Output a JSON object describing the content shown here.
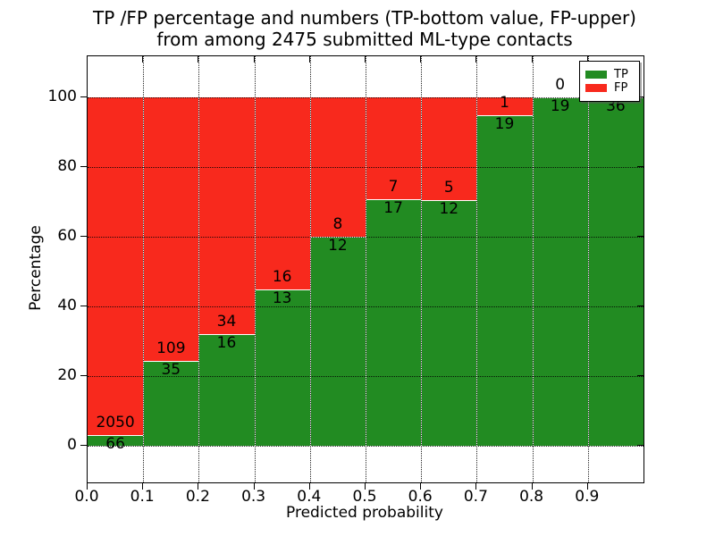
{
  "title": {
    "line1": "TP /FP percentage and numbers (TP-bottom value, FP-upper)",
    "line2": "from among 2475 submitted ML-type contacts"
  },
  "legend": {
    "items": [
      {
        "label": "TP",
        "color": "#228b22"
      },
      {
        "label": "FP",
        "color": "#f8291d"
      }
    ],
    "position": "upper right"
  },
  "chart_data": {
    "type": "bar",
    "subtype": "stacked_percentage",
    "title": "TP /FP percentage and numbers (TP-bottom value, FP-upper) from among 2475 submitted ML-type contacts",
    "xlabel": "Predicted probability",
    "ylabel": "Percentage",
    "total_contacts": 2475,
    "bin_width": 0.1,
    "bin_starts": [
      0.0,
      0.1,
      0.2,
      0.3,
      0.4,
      0.5,
      0.6,
      0.7,
      0.8,
      0.9
    ],
    "xticks": [
      "0.0",
      "0.1",
      "0.2",
      "0.3",
      "0.4",
      "0.5",
      "0.6",
      "0.7",
      "0.8",
      "0.9"
    ],
    "yticks": [
      0,
      20,
      40,
      60,
      80,
      100
    ],
    "ylim": [
      -10.5,
      111.8
    ],
    "xlim": [
      0.0,
      1.0
    ],
    "grid": true,
    "grid_style": "dotted",
    "series": [
      {
        "name": "TP",
        "position": "bottom",
        "color": "#228b22",
        "counts": [
          66,
          35,
          16,
          13,
          12,
          17,
          12,
          19,
          19,
          36
        ],
        "percent_of_bin": [
          3.12,
          24.31,
          32.0,
          44.83,
          60.0,
          70.83,
          70.59,
          95.0,
          100.0,
          100.0
        ]
      },
      {
        "name": "FP",
        "position": "top",
        "color": "#f8291d",
        "counts": [
          2050,
          109,
          34,
          16,
          8,
          7,
          5,
          1,
          0,
          0
        ],
        "percent_of_bin": [
          96.88,
          75.69,
          68.0,
          55.17,
          40.0,
          29.17,
          29.41,
          5.0,
          0.0,
          0.0
        ]
      }
    ],
    "bar_edge_color": "#ffffff",
    "value_labels": "FP count above segment boundary, TP count below segment boundary"
  }
}
